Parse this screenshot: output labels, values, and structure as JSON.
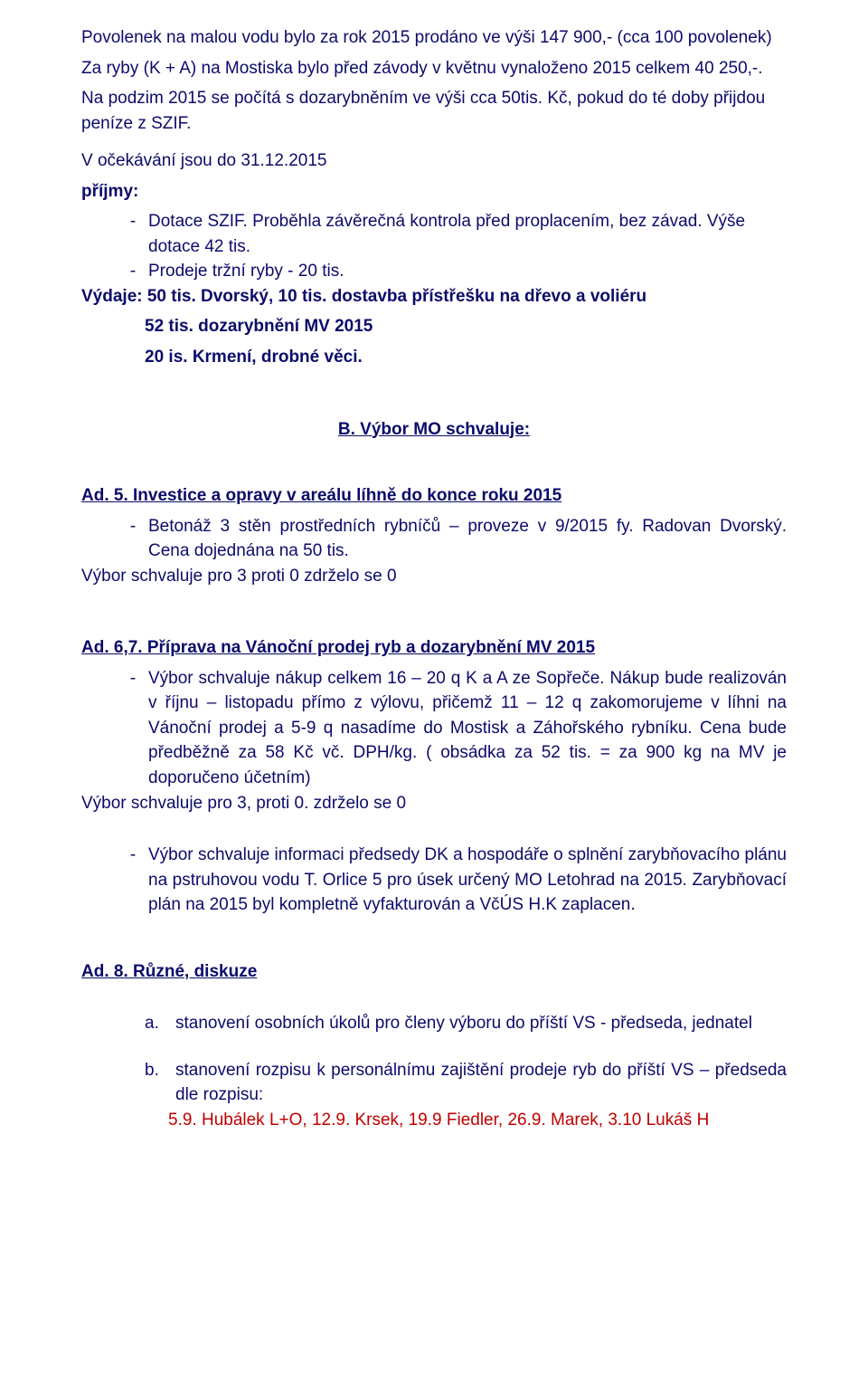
{
  "colors": {
    "text": "#0b0b6b",
    "background": "#ffffff",
    "red": "#c00000"
  },
  "typography": {
    "font_family": "Comic Sans MS",
    "font_size_pt": 14,
    "line_height": 1.45
  },
  "p1": "Povolenek  na malou vodu bylo za rok 2015   prodáno ve výši 147 900,- (cca 100 povolenek)",
  "p2": "Za ryby  (K + A) na Mostiska bylo před závody  v květnu vynaloženo  2015  celkem  40  250,-.",
  "p3": "Na podzim 2015 se počítá  s dozarybněním  ve výši  cca  50tis.  Kč, pokud  do té doby  přijdou peníze z SZIF.",
  "p4": "V očekávání jsou do 31.12.2015",
  "p5": "příjmy:",
  "bul1": "Dotace SZIF. Proběhla závěrečná kontrola před proplacením, bez závad. Výše dotace 42  tis.",
  "bul2": "Prodeje tržní ryby -  20 tis.",
  "vydaje_line1": "Výdaje:   50 tis. Dvorský, 10 tis. dostavba přístřešku na dřevo a voliéru",
  "vydaje_line2": "52  tis. dozarybnění MV 2015",
  "vydaje_line3": "20 is. Krmení, drobné věci.",
  "heading_b": "B. Výbor MO schvaluje:",
  "ad5_label": "Ad. 5.   Investice  a opravy v areálu     líhně do konce roku 2015",
  "ad5_bul1": "Betonáž  3  stěn  prostředních  rybníčů  –   proveze  v 9/2015    fy.  Radovan Dvorský. Cena dojednána na 50 tis.",
  "ad5_vote": "Výbor schvaluje  pro 3 proti 0 zdrželo se 0",
  "ad67_label": "Ad. 6,7.     Příprava na Vánoční prodej ryb a dozarybnění MV  2015",
  "ad67_bul1": "Výbor schvaluje nákup  celkem  16 – 20  q  K a  A  ze Sopřeče. Nákup bude  realizován v říjnu – listopadu  přímo z výlovu, přičemž  11 – 12 q zakomorujeme  v líhni na Vánoční prodej a  5-9 q nasadíme do Mostisk a Záhořského rybníku. Cena bude předběžně za 58 Kč vč. DPH/kg.  ( obsádka za 52 tis.  = za 900 kg na MV je doporučeno účetním)",
  "ad67_vote": "Výbor schvaluje  pro 3, proti 0. zdrželo se 0",
  "ad67_bul2a": "Výbor schvaluje  informaci předsedy DK  a hospodáře  o splnění zarybňovacího plánu  na pstruhovou vodu T. Orlice 5  pro  úsek určený MO Letohrad na 2015.",
  "ad67_bul2b": "Zarybňovací plán na 2015 byl kompletně vyfakturován a VčÚS H.K zaplacen.",
  "ad8_label": "Ad. 8.  Různé, diskuze",
  "letter_a": "a.",
  "item_a": "stanovení  osobních  úkolů  pro  členy  výboru  do  příští  VS  -    předseda, jednatel",
  "letter_b": "b.",
  "item_b": "stanovení  rozpisu  k personálnímu  zajištění  prodeje  ryb  do  příští  VS  – předseda  dle rozpisu:",
  "item_b_red": "5.9. Hubálek L+O,  12.9.  Krsek,   19.9 Fiedler,  26.9.  Marek,  3.10 Lukáš H"
}
